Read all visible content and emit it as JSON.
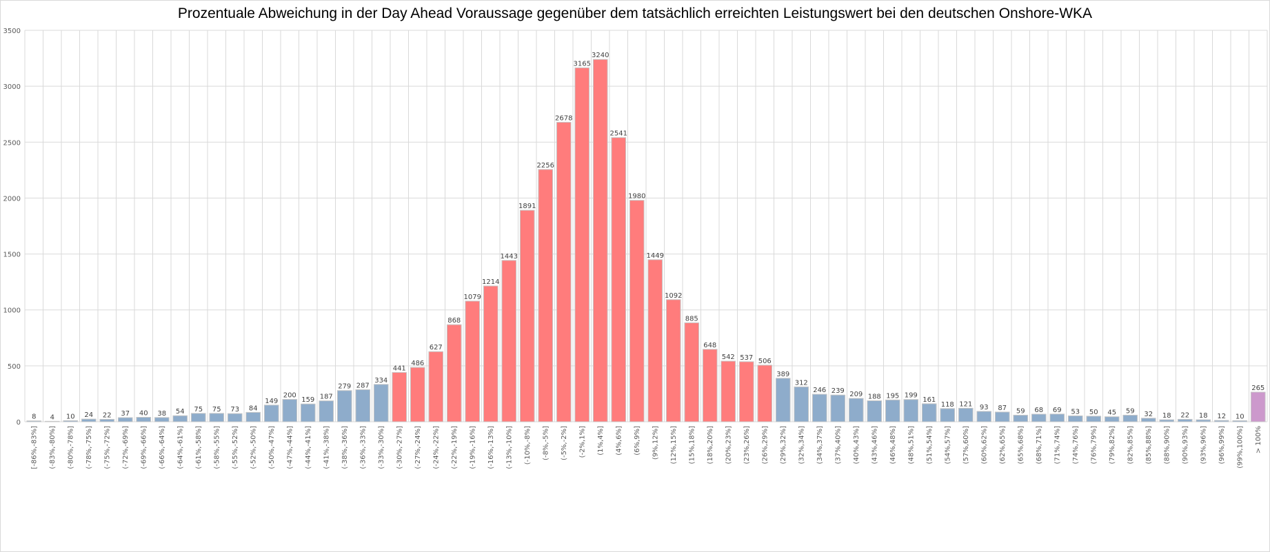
{
  "chart_data": {
    "type": "bar",
    "title": "Prozentuale Abweichung in der Day Ahead Voraussage gegenüber dem tatsächlich erreichten Leistungswert bei den deutschen Onshore-WKA",
    "xlabel": "",
    "ylabel": "",
    "ylim": [
      0,
      3500
    ],
    "yticks": [
      0,
      500,
      1000,
      1500,
      2000,
      2500,
      3000,
      3500
    ],
    "grid": true,
    "categories": [
      "[-86%,-83%]",
      "(-83%,-80%]",
      "(-80%,-78%]",
      "(-78%,-75%]",
      "(-75%,-72%]",
      "(-72%,-69%]",
      "(-69%,-66%]",
      "(-66%,-64%]",
      "(-64%,-61%]",
      "(-61%,-58%]",
      "(-58%,-55%]",
      "(-55%,-52%]",
      "(-52%,-50%]",
      "(-50%,-47%]",
      "(-47%,-44%]",
      "(-44%,-41%]",
      "(-41%,-38%]",
      "(-38%,-36%]",
      "(-36%,-33%]",
      "(-33%,-30%]",
      "(-30%,-27%]",
      "(-27%,-24%]",
      "(-24%,-22%]",
      "(-22%,-19%]",
      "(-19%,-16%]",
      "(-16%,-13%]",
      "(-13%,-10%]",
      "(-10%,-8%]",
      "(-8%,-5%]",
      "(-5%,-2%]",
      "(-2%,1%]",
      "(1%,4%]",
      "(4%,6%]",
      "(6%,9%]",
      "(9%,12%]",
      "(12%,15%]",
      "(15%,18%]",
      "(18%,20%]",
      "(20%,23%]",
      "(23%,26%]",
      "(26%,29%]",
      "(29%,32%]",
      "(32%,34%]",
      "(34%,37%]",
      "(37%,40%]",
      "(40%,43%]",
      "(43%,46%]",
      "(46%,48%]",
      "(48%,51%]",
      "(51%,54%]",
      "(54%,57%]",
      "(57%,60%]",
      "(60%,62%]",
      "(62%,65%]",
      "(65%,68%]",
      "(68%,71%]",
      "(71%,74%]",
      "(74%,76%]",
      "(76%,79%]",
      "(79%,82%]",
      "(82%,85%]",
      "(85%,88%]",
      "(88%,90%]",
      "(90%,93%]",
      "(93%,96%]",
      "(96%,99%]",
      "(99%,100%]",
      "> 100%"
    ],
    "values": [
      8,
      4,
      10,
      24,
      22,
      37,
      40,
      38,
      54,
      75,
      75,
      73,
      84,
      149,
      200,
      159,
      187,
      279,
      287,
      334,
      441,
      486,
      627,
      868,
      1079,
      1214,
      1443,
      1891,
      2256,
      2678,
      3165,
      3240,
      2541,
      1980,
      1449,
      1092,
      885,
      648,
      542,
      537,
      506,
      389,
      312,
      246,
      239,
      209,
      188,
      195,
      199,
      161,
      118,
      121,
      93,
      87,
      59,
      68,
      69,
      53,
      50,
      45,
      59,
      32,
      18,
      22,
      18,
      12,
      10,
      265
    ],
    "highlight_range": [
      20,
      40
    ],
    "colors": {
      "normal": "#8eaccb",
      "highlight": "#ff7c7c",
      "overflow": "#cc99cc",
      "grid": "#d9d9d9",
      "bar_border": "#c8c8c8"
    }
  }
}
